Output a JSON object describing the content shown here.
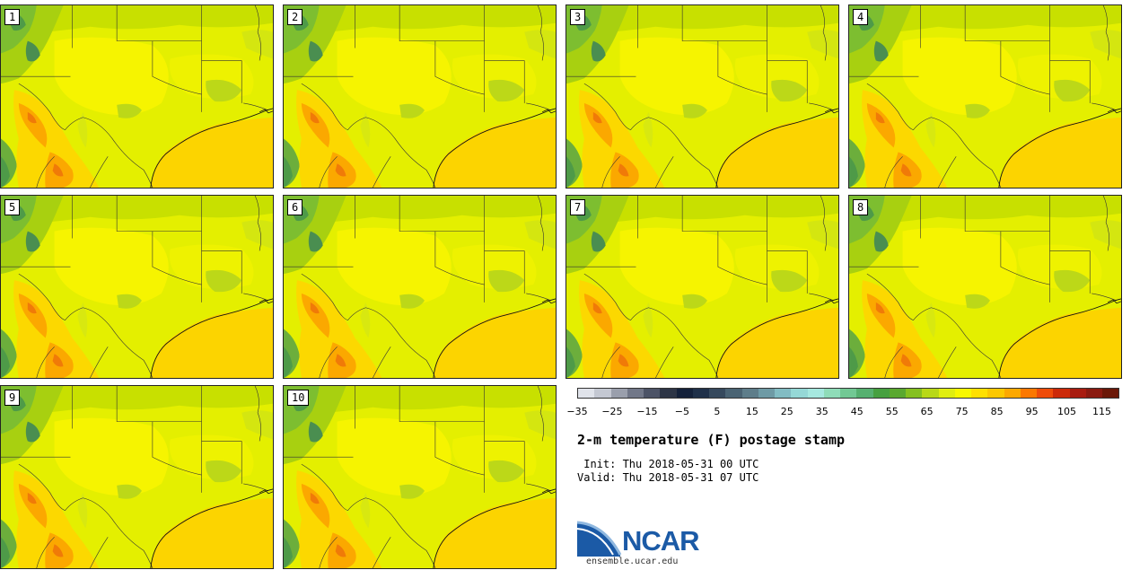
{
  "stamps": [
    {
      "label": "1"
    },
    {
      "label": "2"
    },
    {
      "label": "3"
    },
    {
      "label": "4"
    },
    {
      "label": "5"
    },
    {
      "label": "6"
    },
    {
      "label": "7"
    },
    {
      "label": "8"
    },
    {
      "label": "9"
    },
    {
      "label": "10"
    }
  ],
  "colorbar": {
    "colors": [
      "#e0e3ea",
      "#c4c8d2",
      "#9a9fac",
      "#717788",
      "#4c5366",
      "#2d3546",
      "#14213a",
      "#1f3049",
      "#36495d",
      "#4a6373",
      "#5e7d8a",
      "#6e9aa5",
      "#82bcc3",
      "#95d8d6",
      "#a6e8df",
      "#8fdcb8",
      "#72c894",
      "#56b070",
      "#46a040",
      "#5aa830",
      "#85c020",
      "#b8d818",
      "#e0ee10",
      "#f8f800",
      "#ffe000",
      "#fcc800",
      "#fca800",
      "#fb7800",
      "#ee4c0a",
      "#cc2a0a",
      "#a81c10",
      "#8a1a10",
      "#6a1808"
    ],
    "tick_labels": [
      "−35",
      "−25",
      "−15",
      "−5",
      "5",
      "15",
      "25",
      "35",
      "45",
      "55",
      "65",
      "75",
      "85",
      "95",
      "105",
      "115"
    ],
    "min": -35,
    "max": 120,
    "tick_step": 10
  },
  "product": {
    "title": "2-m temperature (F) postage stamp",
    "init": " Init: Thu 2018-05-31 00 UTC",
    "valid": "Valid: Thu 2018-05-31 07 UTC"
  },
  "branding": {
    "logo_text": "NCAR",
    "site": "ensemble.ucar.edu",
    "logo_color": "#1b5aa6"
  }
}
